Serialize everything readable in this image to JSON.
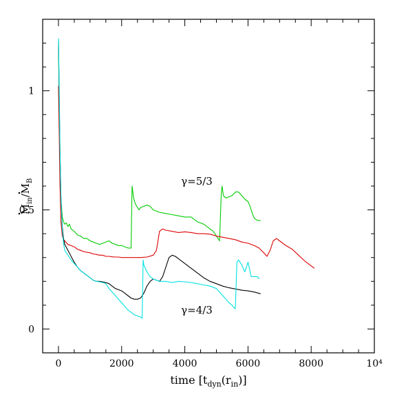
{
  "chart_data": {
    "type": "line",
    "title": "",
    "xlabel": "time [t",
    "xlabel_sub1": "dyn",
    "xlabel_mid": "(r",
    "xlabel_sub2": "in",
    "xlabel_end": ")]",
    "ylabel_num": "M",
    "ylabel_num_sub": "in",
    "ylabel_slash": "/",
    "ylabel_den": "M",
    "ylabel_den_sub": "B",
    "xlim": [
      -500,
      10000
    ],
    "ylim": [
      -0.1,
      1.3
    ],
    "x_ticks": [
      {
        "value": 0,
        "label": "0"
      },
      {
        "value": 2000,
        "label": "2000"
      },
      {
        "value": 4000,
        "label": "4000"
      },
      {
        "value": 6000,
        "label": "6000"
      },
      {
        "value": 8000,
        "label": "8000"
      },
      {
        "value": 10000,
        "label": "10⁴"
      }
    ],
    "y_ticks": [
      {
        "value": 0,
        "label": "0"
      },
      {
        "value": 0.5,
        "label": "0.5"
      },
      {
        "value": 1,
        "label": "1"
      }
    ],
    "grid": false,
    "annotations": [
      {
        "text": "γ=5/3",
        "x": 4380,
        "y": 0.62
      },
      {
        "text": "γ=4/3",
        "x": 4380,
        "y": 0.08
      }
    ],
    "series": [
      {
        "color": "#00cc00",
        "points": [
          [
            0,
            1.21
          ],
          [
            20,
            0.95
          ],
          [
            50,
            0.7
          ],
          [
            80,
            0.55
          ],
          [
            120,
            0.47
          ],
          [
            160,
            0.45
          ],
          [
            200,
            0.44
          ],
          [
            250,
            0.445
          ],
          [
            300,
            0.43
          ],
          [
            350,
            0.44
          ],
          [
            400,
            0.42
          ],
          [
            500,
            0.41
          ],
          [
            600,
            0.395
          ],
          [
            700,
            0.39
          ],
          [
            800,
            0.38
          ],
          [
            900,
            0.38
          ],
          [
            1000,
            0.37
          ],
          [
            1100,
            0.365
          ],
          [
            1200,
            0.36
          ],
          [
            1300,
            0.355
          ],
          [
            1400,
            0.36
          ],
          [
            1500,
            0.365
          ],
          [
            1600,
            0.37
          ],
          [
            1700,
            0.36
          ],
          [
            1800,
            0.355
          ],
          [
            1900,
            0.35
          ],
          [
            2000,
            0.35
          ],
          [
            2100,
            0.345
          ],
          [
            2200,
            0.34
          ],
          [
            2300,
            0.34
          ],
          [
            2330,
            0.6
          ],
          [
            2380,
            0.55
          ],
          [
            2420,
            0.53
          ],
          [
            2500,
            0.51
          ],
          [
            2550,
            0.5
          ],
          [
            2600,
            0.51
          ],
          [
            2700,
            0.515
          ],
          [
            2800,
            0.52
          ],
          [
            2900,
            0.515
          ],
          [
            3000,
            0.5
          ],
          [
            3200,
            0.49
          ],
          [
            3400,
            0.485
          ],
          [
            3600,
            0.48
          ],
          [
            3800,
            0.475
          ],
          [
            4000,
            0.47
          ],
          [
            4200,
            0.47
          ],
          [
            4300,
            0.46
          ],
          [
            4400,
            0.45
          ],
          [
            4500,
            0.445
          ],
          [
            4600,
            0.44
          ],
          [
            4700,
            0.43
          ],
          [
            4800,
            0.42
          ],
          [
            4900,
            0.41
          ],
          [
            5000,
            0.39
          ],
          [
            5050,
            0.38
          ],
          [
            5100,
            0.37
          ],
          [
            5150,
            0.56
          ],
          [
            5180,
            0.6
          ],
          [
            5220,
            0.56
          ],
          [
            5300,
            0.55
          ],
          [
            5400,
            0.555
          ],
          [
            5500,
            0.56
          ],
          [
            5600,
            0.575
          ],
          [
            5700,
            0.575
          ],
          [
            5800,
            0.56
          ],
          [
            5900,
            0.545
          ],
          [
            6000,
            0.535
          ],
          [
            6050,
            0.52
          ],
          [
            6100,
            0.5
          ],
          [
            6150,
            0.48
          ],
          [
            6200,
            0.465
          ],
          [
            6300,
            0.455
          ],
          [
            6400,
            0.455
          ]
        ]
      },
      {
        "color": "#dd0000",
        "points": [
          [
            0,
            1.02
          ],
          [
            20,
            0.85
          ],
          [
            50,
            0.6
          ],
          [
            80,
            0.45
          ],
          [
            120,
            0.39
          ],
          [
            160,
            0.375
          ],
          [
            200,
            0.37
          ],
          [
            300,
            0.355
          ],
          [
            400,
            0.35
          ],
          [
            500,
            0.345
          ],
          [
            600,
            0.335
          ],
          [
            700,
            0.33
          ],
          [
            800,
            0.325
          ],
          [
            900,
            0.322
          ],
          [
            1000,
            0.32
          ],
          [
            1100,
            0.315
          ],
          [
            1200,
            0.313
          ],
          [
            1300,
            0.31
          ],
          [
            1400,
            0.31
          ],
          [
            1500,
            0.305
          ],
          [
            1600,
            0.305
          ],
          [
            1700,
            0.303
          ],
          [
            1800,
            0.302
          ],
          [
            1900,
            0.302
          ],
          [
            2000,
            0.3
          ],
          [
            2200,
            0.3
          ],
          [
            2400,
            0.3
          ],
          [
            2600,
            0.3
          ],
          [
            2800,
            0.302
          ],
          [
            3000,
            0.31
          ],
          [
            3100,
            0.33
          ],
          [
            3150,
            0.37
          ],
          [
            3200,
            0.41
          ],
          [
            3300,
            0.42
          ],
          [
            3400,
            0.415
          ],
          [
            3600,
            0.41
          ],
          [
            3800,
            0.405
          ],
          [
            4000,
            0.408
          ],
          [
            4200,
            0.405
          ],
          [
            4400,
            0.4
          ],
          [
            4600,
            0.4
          ],
          [
            4800,
            0.398
          ],
          [
            5000,
            0.39
          ],
          [
            5200,
            0.385
          ],
          [
            5400,
            0.38
          ],
          [
            5600,
            0.375
          ],
          [
            5800,
            0.365
          ],
          [
            6000,
            0.36
          ],
          [
            6200,
            0.35
          ],
          [
            6350,
            0.34
          ],
          [
            6500,
            0.32
          ],
          [
            6600,
            0.305
          ],
          [
            6700,
            0.33
          ],
          [
            6800,
            0.37
          ],
          [
            6900,
            0.38
          ],
          [
            7000,
            0.37
          ],
          [
            7200,
            0.35
          ],
          [
            7400,
            0.335
          ],
          [
            7600,
            0.31
          ],
          [
            7800,
            0.285
          ],
          [
            8000,
            0.265
          ],
          [
            8100,
            0.255
          ]
        ]
      },
      {
        "color": "#000000",
        "points": [
          [
            0,
            1.21
          ],
          [
            20,
            1.0
          ],
          [
            50,
            0.75
          ],
          [
            80,
            0.55
          ],
          [
            120,
            0.43
          ],
          [
            160,
            0.38
          ],
          [
            200,
            0.355
          ],
          [
            300,
            0.33
          ],
          [
            400,
            0.305
          ],
          [
            500,
            0.28
          ],
          [
            600,
            0.26
          ],
          [
            700,
            0.245
          ],
          [
            800,
            0.235
          ],
          [
            900,
            0.225
          ],
          [
            1000,
            0.215
          ],
          [
            1100,
            0.205
          ],
          [
            1200,
            0.2
          ],
          [
            1300,
            0.2
          ],
          [
            1400,
            0.198
          ],
          [
            1500,
            0.195
          ],
          [
            1600,
            0.19
          ],
          [
            1700,
            0.18
          ],
          [
            1800,
            0.17
          ],
          [
            1900,
            0.165
          ],
          [
            2000,
            0.16
          ],
          [
            2100,
            0.15
          ],
          [
            2200,
            0.14
          ],
          [
            2300,
            0.13
          ],
          [
            2400,
            0.125
          ],
          [
            2500,
            0.125
          ],
          [
            2600,
            0.13
          ],
          [
            2700,
            0.15
          ],
          [
            2800,
            0.18
          ],
          [
            2900,
            0.2
          ],
          [
            3000,
            0.21
          ],
          [
            3100,
            0.205
          ],
          [
            3200,
            0.2
          ],
          [
            3300,
            0.22
          ],
          [
            3400,
            0.26
          ],
          [
            3500,
            0.3
          ],
          [
            3600,
            0.31
          ],
          [
            3700,
            0.305
          ],
          [
            3800,
            0.295
          ],
          [
            4000,
            0.275
          ],
          [
            4200,
            0.255
          ],
          [
            4400,
            0.235
          ],
          [
            4600,
            0.215
          ],
          [
            4800,
            0.2
          ],
          [
            5000,
            0.19
          ],
          [
            5200,
            0.18
          ],
          [
            5400,
            0.173
          ],
          [
            5600,
            0.168
          ],
          [
            5800,
            0.163
          ],
          [
            6000,
            0.16
          ],
          [
            6200,
            0.155
          ],
          [
            6400,
            0.148
          ]
        ]
      },
      {
        "color": "#00e0e0",
        "points": [
          [
            0,
            1.22
          ],
          [
            20,
            1.05
          ],
          [
            50,
            0.75
          ],
          [
            80,
            0.55
          ],
          [
            120,
            0.42
          ],
          [
            160,
            0.36
          ],
          [
            200,
            0.33
          ],
          [
            300,
            0.31
          ],
          [
            400,
            0.29
          ],
          [
            500,
            0.275
          ],
          [
            600,
            0.26
          ],
          [
            700,
            0.245
          ],
          [
            800,
            0.235
          ],
          [
            900,
            0.225
          ],
          [
            1000,
            0.215
          ],
          [
            1100,
            0.205
          ],
          [
            1200,
            0.2
          ],
          [
            1300,
            0.198
          ],
          [
            1400,
            0.195
          ],
          [
            1500,
            0.19
          ],
          [
            1600,
            0.17
          ],
          [
            1700,
            0.155
          ],
          [
            1800,
            0.14
          ],
          [
            1900,
            0.125
          ],
          [
            2000,
            0.11
          ],
          [
            2100,
            0.095
          ],
          [
            2200,
            0.08
          ],
          [
            2300,
            0.07
          ],
          [
            2400,
            0.06
          ],
          [
            2500,
            0.055
          ],
          [
            2600,
            0.05
          ],
          [
            2650,
            0.045
          ],
          [
            2680,
            0.29
          ],
          [
            2700,
            0.27
          ],
          [
            2800,
            0.24
          ],
          [
            2900,
            0.22
          ],
          [
            3000,
            0.21
          ],
          [
            3200,
            0.2
          ],
          [
            3400,
            0.2
          ],
          [
            3600,
            0.195
          ],
          [
            3800,
            0.2
          ],
          [
            4000,
            0.198
          ],
          [
            4200,
            0.195
          ],
          [
            4400,
            0.19
          ],
          [
            4600,
            0.185
          ],
          [
            4800,
            0.18
          ],
          [
            5000,
            0.17
          ],
          [
            5200,
            0.14
          ],
          [
            5400,
            0.11
          ],
          [
            5500,
            0.1
          ],
          [
            5550,
            0.09
          ],
          [
            5600,
            0.085
          ],
          [
            5650,
            0.28
          ],
          [
            5700,
            0.29
          ],
          [
            5800,
            0.27
          ],
          [
            5900,
            0.24
          ],
          [
            6000,
            0.28
          ],
          [
            6100,
            0.22
          ],
          [
            6200,
            0.22
          ],
          [
            6300,
            0.22
          ],
          [
            6350,
            0.21
          ]
        ]
      }
    ]
  }
}
